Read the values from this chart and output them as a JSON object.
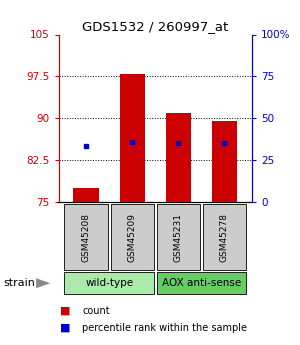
{
  "title": "GDS1532 / 260997_at",
  "samples": [
    "GSM45208",
    "GSM45209",
    "GSM45231",
    "GSM45278"
  ],
  "bar_values": [
    77.5,
    98.0,
    91.0,
    89.5
  ],
  "percentile_values": [
    85.0,
    85.8,
    85.5,
    85.5
  ],
  "bar_bottom": 75,
  "ylim_left": [
    75,
    105
  ],
  "ylim_right": [
    0,
    100
  ],
  "yticks_left": [
    75,
    82.5,
    90,
    97.5,
    105
  ],
  "yticks_right": [
    0,
    25,
    50,
    75,
    100
  ],
  "ytick_labels_left": [
    "75",
    "82.5",
    "90",
    "97.5",
    "105"
  ],
  "ytick_labels_right": [
    "0",
    "25",
    "50",
    "75",
    "100%"
  ],
  "bar_color": "#cc0000",
  "percentile_color": "#0000cc",
  "groups": [
    {
      "label": "wild-type",
      "indices": [
        0,
        1
      ],
      "color": "#aaeaaa"
    },
    {
      "label": "AOX anti-sense",
      "indices": [
        2,
        3
      ],
      "color": "#66cc66"
    }
  ],
  "strain_label": "strain",
  "legend_count": "count",
  "legend_percentile": "percentile rank within the sample",
  "bar_width": 0.55,
  "background_color": "#ffffff",
  "sample_box_color": "#cccccc"
}
